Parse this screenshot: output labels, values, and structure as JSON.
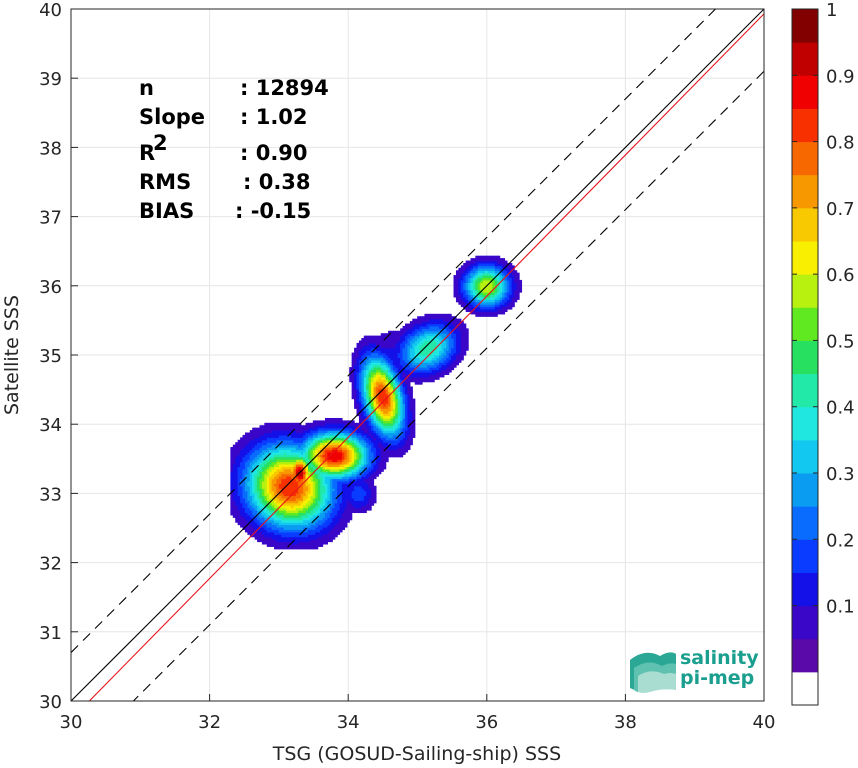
{
  "chart_data": {
    "type": "heatmap",
    "xlabel": "TSG (GOSUD-Sailing-ship) SSS",
    "ylabel": "Satellite SSS",
    "xlim": [
      30,
      40
    ],
    "ylim": [
      30,
      40
    ],
    "x_ticks": [
      "30",
      "32",
      "34",
      "36",
      "38",
      "40"
    ],
    "y_ticks": [
      "30",
      "31",
      "32",
      "33",
      "34",
      "35",
      "36",
      "37",
      "38",
      "39",
      "40"
    ],
    "grid": true,
    "stats": [
      {
        "label": "n",
        "value": ": 12894"
      },
      {
        "label": "Slope",
        "value": ": 1.02"
      },
      {
        "label": "R",
        "superscript": "2",
        "value": ": 0.90"
      },
      {
        "label": "RMS",
        "value": ": 0.38"
      },
      {
        "label": "BIAS",
        "value": ": -0.15"
      }
    ],
    "reference_lines": {
      "identity": {
        "slope": 1,
        "intercept": 0,
        "color": "#000000",
        "style": "solid"
      },
      "regression": {
        "slope": 1.02,
        "intercept": -0.87,
        "color": "#e8141b",
        "style": "solid"
      },
      "bounds": [
        {
          "slope": 1,
          "intercept": 0.7,
          "color": "#000000",
          "style": "dashed"
        },
        {
          "slope": 1,
          "intercept": -0.9,
          "color": "#000000",
          "style": "dashed"
        }
      ]
    },
    "density_clusters": [
      {
        "x": 33.15,
        "y": 33.1,
        "sx": 0.42,
        "sy": 0.38,
        "rot": -0.6,
        "peak": 0.85
      },
      {
        "x": 33.8,
        "y": 33.55,
        "sx": 0.32,
        "sy": 0.22,
        "rot": 0.0,
        "peak": 0.9
      },
      {
        "x": 33.3,
        "y": 33.3,
        "sx": 0.12,
        "sy": 0.18,
        "rot": 0.0,
        "peak": 0.95
      },
      {
        "x": 34.5,
        "y": 34.4,
        "sx": 0.18,
        "sy": 0.38,
        "rot": 0.25,
        "peak": 0.85
      },
      {
        "x": 35.15,
        "y": 35.1,
        "sx": 0.3,
        "sy": 0.22,
        "rot": 0.5,
        "peak": 0.45
      },
      {
        "x": 36.0,
        "y": 36.0,
        "sx": 0.22,
        "sy": 0.2,
        "rot": 0.0,
        "peak": 0.6
      },
      {
        "x": 34.15,
        "y": 33.0,
        "sx": 0.16,
        "sy": 0.18,
        "rot": 0.0,
        "peak": 0.18
      },
      {
        "x": 34.55,
        "y": 34.9,
        "sx": 0.4,
        "sy": 0.3,
        "rot": 0.6,
        "peak": 0.12
      }
    ],
    "colorbar": {
      "ticks": [
        "0.1",
        "0.2",
        "0.3",
        "0.4",
        "0.5",
        "0.6",
        "0.7",
        "0.8",
        "0.9",
        "1"
      ],
      "levels": 20,
      "colors": [
        "#ffffff",
        "#5a0aa8",
        "#3a06c8",
        "#1410e8",
        "#0a3cff",
        "#0a6cff",
        "#0a9cf0",
        "#12c8f0",
        "#20e8e0",
        "#22e8a8",
        "#28e060",
        "#60e820",
        "#b8f010",
        "#f8f000",
        "#f8c800",
        "#f89800",
        "#f86800",
        "#f83000",
        "#f00000",
        "#c00000",
        "#820000"
      ]
    },
    "logo": {
      "line1": "salinity",
      "line2": "pi-mep"
    }
  }
}
